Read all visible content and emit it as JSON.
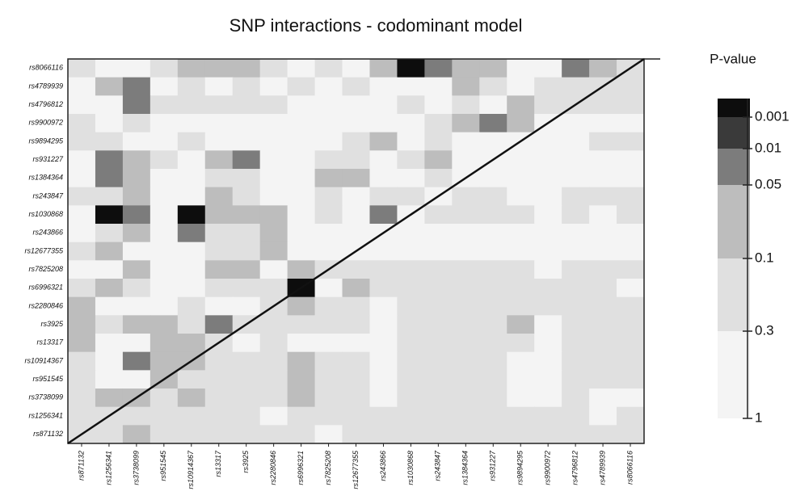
{
  "chart_data": {
    "type": "heatmap",
    "title": "SNP interactions - codominant model",
    "colorbar_label": "P-value",
    "x": [
      "rs871132",
      "rs1256341",
      "rs3738099",
      "rs951545",
      "rs10914367",
      "rs13317",
      "rs3925",
      "rs2280846",
      "rs6996321",
      "rs7825208",
      "rs12677355",
      "rs243866",
      "rs1030868",
      "rs243847",
      "rs1384364",
      "rs931227",
      "rs9894295",
      "rs9900972",
      "rs4796812",
      "rs4789939",
      "rs8066116"
    ],
    "y": [
      "rs8066116",
      "rs4789939",
      "rs4796812",
      "rs9900972",
      "rs9894295",
      "rs931227",
      "rs1384364",
      "rs243847",
      "rs1030868",
      "rs243866",
      "rs12677355",
      "rs7825208",
      "rs6996321",
      "rs2280846",
      "rs3925",
      "rs13317",
      "rs10914367",
      "rs951545",
      "rs3738099",
      "rs1256341",
      "rs871132"
    ],
    "values": [
      [
        0.2,
        0.5,
        0.5,
        0.2,
        0.07,
        0.07,
        0.07,
        0.2,
        0.5,
        0.2,
        0.5,
        0.07,
        0.0005,
        0.03,
        0.07,
        0.07,
        0.5,
        0.5,
        0.03,
        0.07,
        0.2
      ],
      [
        0.5,
        0.07,
        0.03,
        0.5,
        0.2,
        0.5,
        0.2,
        0.5,
        0.2,
        0.5,
        0.2,
        0.5,
        0.5,
        0.5,
        0.07,
        0.2,
        0.5,
        0.2,
        0.2,
        0.2,
        0.2
      ],
      [
        0.5,
        0.5,
        0.03,
        0.2,
        0.2,
        0.2,
        0.2,
        0.2,
        0.5,
        0.5,
        0.5,
        0.5,
        0.2,
        0.5,
        0.2,
        0.5,
        0.07,
        0.2,
        0.2,
        0.2,
        0.2
      ],
      [
        0.2,
        0.5,
        0.2,
        0.5,
        0.5,
        0.5,
        0.5,
        0.5,
        0.5,
        0.5,
        0.5,
        0.5,
        0.5,
        0.2,
        0.07,
        0.03,
        0.07,
        0.5,
        0.5,
        0.5,
        0.5
      ],
      [
        0.2,
        0.2,
        0.5,
        0.5,
        0.2,
        0.5,
        0.5,
        0.5,
        0.5,
        0.5,
        0.2,
        0.07,
        0.5,
        0.2,
        0.5,
        0.5,
        0.5,
        0.5,
        0.5,
        0.2,
        0.2
      ],
      [
        0.5,
        0.03,
        0.07,
        0.2,
        0.5,
        0.07,
        0.03,
        0.5,
        0.5,
        0.2,
        0.2,
        0.5,
        0.2,
        0.07,
        0.5,
        0.5,
        0.5,
        0.5,
        0.5,
        0.5,
        0.5
      ],
      [
        0.5,
        0.03,
        0.07,
        0.5,
        0.5,
        0.2,
        0.2,
        0.5,
        0.5,
        0.07,
        0.07,
        0.5,
        0.5,
        0.2,
        0.5,
        0.5,
        0.5,
        0.5,
        0.5,
        0.5,
        0.5
      ],
      [
        0.2,
        0.2,
        0.07,
        0.5,
        0.5,
        0.07,
        0.2,
        0.5,
        0.5,
        0.2,
        0.5,
        0.2,
        0.2,
        0.5,
        0.2,
        0.2,
        0.5,
        0.5,
        0.2,
        0.2,
        0.2
      ],
      [
        0.5,
        0.0005,
        0.03,
        0.5,
        0.0005,
        0.07,
        0.07,
        0.07,
        0.5,
        0.2,
        0.5,
        0.03,
        0.5,
        0.2,
        0.2,
        0.2,
        0.2,
        0.5,
        0.2,
        0.5,
        0.2
      ],
      [
        0.5,
        0.2,
        0.07,
        0.5,
        0.03,
        0.2,
        0.2,
        0.07,
        0.5,
        0.5,
        0.5,
        0.5,
        0.5,
        0.5,
        0.5,
        0.5,
        0.5,
        0.5,
        0.5,
        0.5,
        0.5
      ],
      [
        0.2,
        0.07,
        0.5,
        0.5,
        0.5,
        0.2,
        0.2,
        0.07,
        0.5,
        0.5,
        0.5,
        0.5,
        0.5,
        0.5,
        0.5,
        0.5,
        0.5,
        0.5,
        0.5,
        0.5,
        0.5
      ],
      [
        0.5,
        0.5,
        0.07,
        0.5,
        0.5,
        0.07,
        0.07,
        0.5,
        0.07,
        0.2,
        0.2,
        0.2,
        0.2,
        0.2,
        0.2,
        0.2,
        0.2,
        0.5,
        0.2,
        0.2,
        0.2
      ],
      [
        0.2,
        0.07,
        0.2,
        0.5,
        0.5,
        0.2,
        0.2,
        0.2,
        0.0005,
        0.5,
        0.07,
        0.2,
        0.2,
        0.2,
        0.2,
        0.2,
        0.2,
        0.2,
        0.2,
        0.2,
        0.5
      ],
      [
        0.07,
        0.5,
        0.5,
        0.5,
        0.2,
        0.5,
        0.5,
        0.2,
        0.07,
        0.2,
        0.2,
        0.5,
        0.2,
        0.2,
        0.2,
        0.2,
        0.2,
        0.2,
        0.2,
        0.2,
        0.2
      ],
      [
        0.07,
        0.2,
        0.07,
        0.07,
        0.2,
        0.03,
        0.2,
        0.2,
        0.2,
        0.2,
        0.2,
        0.5,
        0.2,
        0.2,
        0.2,
        0.2,
        0.07,
        0.5,
        0.2,
        0.2,
        0.2
      ],
      [
        0.07,
        0.5,
        0.5,
        0.07,
        0.07,
        0.2,
        0.5,
        0.2,
        0.5,
        0.5,
        0.5,
        0.5,
        0.2,
        0.2,
        0.2,
        0.2,
        0.2,
        0.5,
        0.2,
        0.2,
        0.2
      ],
      [
        0.2,
        0.5,
        0.03,
        0.07,
        0.07,
        0.2,
        0.2,
        0.2,
        0.07,
        0.2,
        0.2,
        0.5,
        0.2,
        0.2,
        0.2,
        0.2,
        0.5,
        0.5,
        0.2,
        0.2,
        0.2
      ],
      [
        0.2,
        0.5,
        0.5,
        0.07,
        0.2,
        0.2,
        0.2,
        0.2,
        0.07,
        0.2,
        0.2,
        0.5,
        0.2,
        0.2,
        0.2,
        0.2,
        0.5,
        0.5,
        0.2,
        0.2,
        0.2
      ],
      [
        0.2,
        0.07,
        0.07,
        0.2,
        0.07,
        0.2,
        0.2,
        0.2,
        0.07,
        0.2,
        0.2,
        0.5,
        0.2,
        0.2,
        0.2,
        0.2,
        0.5,
        0.5,
        0.2,
        0.5,
        0.5
      ],
      [
        0.2,
        0.2,
        0.2,
        0.2,
        0.2,
        0.2,
        0.2,
        0.5,
        0.2,
        0.2,
        0.2,
        0.2,
        0.2,
        0.2,
        0.2,
        0.2,
        0.2,
        0.2,
        0.2,
        0.5,
        0.2
      ],
      [
        0.2,
        0.2,
        0.07,
        0.2,
        0.2,
        0.2,
        0.2,
        0.2,
        0.2,
        0.5,
        0.2,
        0.2,
        0.2,
        0.2,
        0.2,
        0.2,
        0.2,
        0.2,
        0.2,
        0.2,
        0.2
      ]
    ],
    "colorbar_ticks": [
      0.001,
      0.01,
      0.05,
      0.1,
      0.3,
      1
    ],
    "colors": [
      "#0d0d0d",
      "#3a3a3a",
      "#7c7c7c",
      "#bdbdbd",
      "#e0e0e0",
      "#f4f4f4"
    ]
  }
}
